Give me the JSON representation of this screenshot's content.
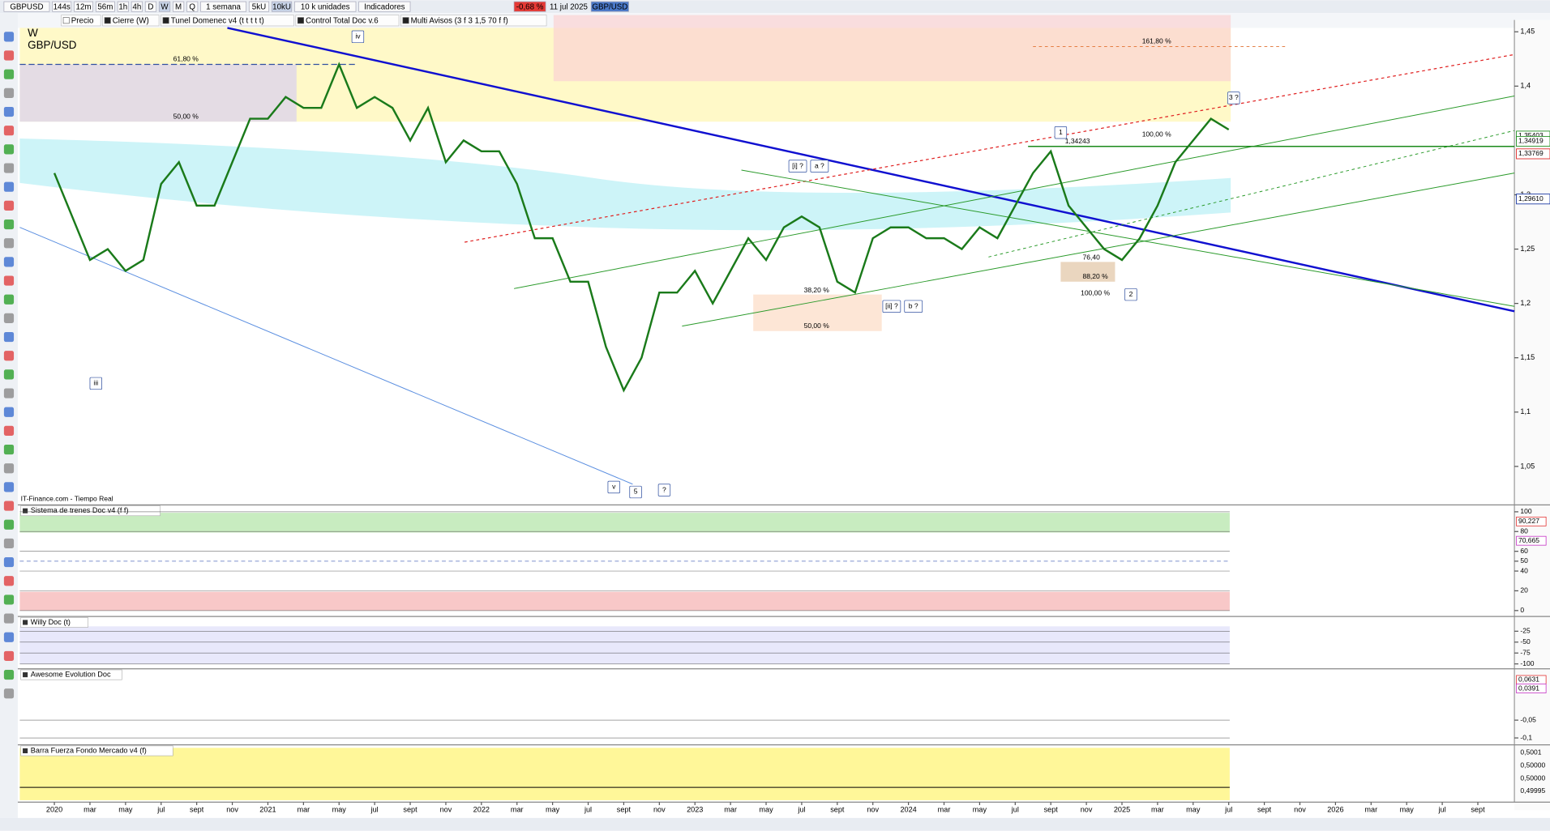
{
  "toolbar": {
    "symbol": "GBPUSD",
    "timeframes": [
      "144s",
      "12m",
      "56m",
      "1h",
      "4h",
      "D",
      "W",
      "M",
      "Q"
    ],
    "period": "1 semana",
    "units": [
      "5kU",
      "10kU"
    ],
    "units_select": "10 k unidades",
    "indicators": "Indicadores",
    "change": "-0,68 %",
    "date": "11 jul 2025",
    "pair": "GBP/USD"
  },
  "legend_bar": [
    "Precio",
    "Cierre (W)",
    "Tunel Domenec v4 (t t t t t)",
    "Control Total Doc v.6",
    "Multi Avisos (3 f 3 1,5 70 f f)"
  ],
  "chart_data": [
    {
      "type": "line",
      "subtitle": "W",
      "title": "GBP/USD",
      "source": "IT-Finance.com - Tiempo Real",
      "x": [
        "2020-01",
        "2020-02",
        "2020-03",
        "2020-04",
        "2020-05",
        "2020-06",
        "2020-07",
        "2020-08",
        "2020-09",
        "2020-10",
        "2020-11",
        "2020-12",
        "2021-01",
        "2021-02",
        "2021-03",
        "2021-04",
        "2021-05",
        "2021-06",
        "2021-07",
        "2021-08",
        "2021-09",
        "2021-10",
        "2021-11",
        "2021-12",
        "2022-01",
        "2022-02",
        "2022-03",
        "2022-04",
        "2022-05",
        "2022-06",
        "2022-07",
        "2022-08",
        "2022-09",
        "2022-10",
        "2022-11",
        "2022-12",
        "2023-01",
        "2023-02",
        "2023-03",
        "2023-04",
        "2023-05",
        "2023-06",
        "2023-07",
        "2023-08",
        "2023-09",
        "2023-10",
        "2023-11",
        "2023-12",
        "2024-01",
        "2024-02",
        "2024-03",
        "2024-04",
        "2024-05",
        "2024-06",
        "2024-07",
        "2024-08",
        "2024-09",
        "2024-10",
        "2024-11",
        "2024-12",
        "2025-01",
        "2025-02",
        "2025-03",
        "2025-04",
        "2025-05",
        "2025-06",
        "2025-07"
      ],
      "values": [
        1.32,
        1.28,
        1.24,
        1.25,
        1.23,
        1.24,
        1.31,
        1.33,
        1.29,
        1.29,
        1.33,
        1.37,
        1.37,
        1.39,
        1.38,
        1.38,
        1.42,
        1.38,
        1.39,
        1.38,
        1.35,
        1.38,
        1.33,
        1.35,
        1.34,
        1.34,
        1.31,
        1.26,
        1.26,
        1.22,
        1.22,
        1.16,
        1.12,
        1.15,
        1.21,
        1.21,
        1.23,
        1.2,
        1.23,
        1.26,
        1.24,
        1.27,
        1.28,
        1.27,
        1.22,
        1.21,
        1.26,
        1.27,
        1.27,
        1.26,
        1.26,
        1.25,
        1.27,
        1.26,
        1.29,
        1.32,
        1.34,
        1.29,
        1.27,
        1.25,
        1.24,
        1.26,
        1.29,
        1.33,
        1.35,
        1.37,
        1.36
      ],
      "color": "#1a7a1a",
      "ylim": [
        1.0155,
        1.4609
      ],
      "yticks": [
        {
          "value": 1.05,
          "label": "1,05"
        },
        {
          "value": 1.1,
          "label": "1,1"
        },
        {
          "value": 1.15,
          "label": "1,15"
        },
        {
          "value": 1.2,
          "label": "1,2"
        },
        {
          "value": 1.25,
          "label": "1,25"
        },
        {
          "value": 1.3,
          "label": "1,3"
        },
        {
          "value": 1.4,
          "label": "1,4"
        },
        {
          "value": 1.45,
          "label": "1,45"
        }
      ],
      "price_markers": [
        {
          "value": 1.35403,
          "label": "1,35403"
        },
        {
          "value": 1.34919,
          "label": "1,34919"
        },
        {
          "value": 1.33769,
          "label": "1,33769"
        },
        {
          "value": 1.2961,
          "label": "1,29610"
        }
      ],
      "xticks": [
        "2020",
        "mar",
        "may",
        "jul",
        "sept",
        "nov",
        "2021",
        "mar",
        "may",
        "jul",
        "sept",
        "nov",
        "2022",
        "mar",
        "may",
        "jul",
        "sept",
        "nov",
        "2023",
        "mar",
        "may",
        "jul",
        "sept",
        "nov",
        "2024",
        "mar",
        "may",
        "jul",
        "sept",
        "nov",
        "2025",
        "mar",
        "may",
        "jul",
        "sept",
        "nov",
        "2026",
        "mar",
        "may",
        "jul",
        "sept"
      ],
      "annotations": [
        "61,80 %",
        "50,00 %",
        "161,80 %",
        "100,00 %",
        "1,34243",
        "38,20 %",
        "50,00 %",
        "76,40",
        "88,20 %",
        "100,00 %"
      ],
      "waves": [
        "iv",
        "iii",
        "v",
        "5",
        "?",
        "[i] ?",
        "a ?",
        "[ii] ?",
        "b ?",
        "1",
        "2",
        "3 ?"
      ]
    },
    {
      "type": "oscillator",
      "title": "Sistema de trenes Doc v4 (f f)",
      "ylim": [
        -4,
        104
      ],
      "yticks": [
        0,
        20,
        40,
        50,
        60,
        80,
        100
      ],
      "markers": [
        {
          "value": 90.227,
          "label": "90,227"
        },
        {
          "value": 70.665,
          "label": "70,665"
        }
      ]
    },
    {
      "type": "oscillator",
      "title": "Willy Doc (t)",
      "ylim": [
        -109,
        2
      ],
      "yticks": [
        -25,
        -50,
        -75,
        -100
      ]
    },
    {
      "type": "oscillator",
      "title": "Awesome Evolution Doc",
      "ylim": [
        -0.114,
        0.086
      ],
      "yticks": [
        {
          "value": -0.05,
          "label": "-0,05"
        },
        {
          "value": -0.1,
          "label": "-0,1"
        }
      ],
      "markers": [
        {
          "value": 0.0631,
          "label": "0,0631"
        },
        {
          "value": 0.0391,
          "label": "0,0391"
        }
      ]
    },
    {
      "type": "oscillator",
      "title": "Barra Fuerza Fondo Mercado v4 (f)",
      "axis_labels": [
        "0,5001",
        "0,50000",
        "0,50000",
        "0,49995"
      ]
    }
  ]
}
